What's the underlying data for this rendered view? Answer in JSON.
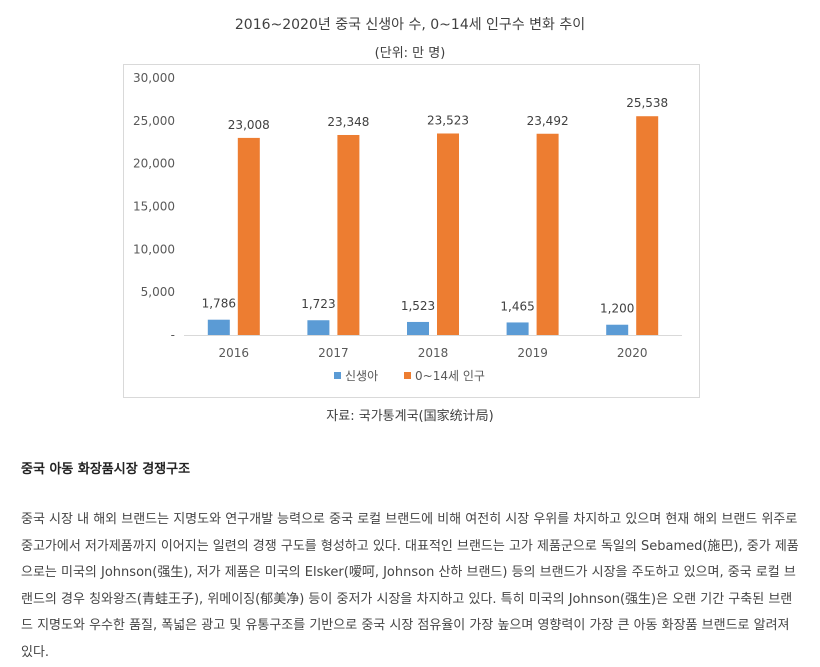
{
  "chart_data": {
    "type": "bar",
    "title": "2016~2020년 중국 신생아 수, 0~14세 인구수 변화 추이",
    "subtitle": "(단위: 만 명)",
    "categories": [
      "2016",
      "2017",
      "2018",
      "2019",
      "2020"
    ],
    "series": [
      {
        "name": "신생아",
        "values": [
          1786,
          1723,
          1523,
          1465,
          1200
        ],
        "labels": [
          "1,786",
          "1,723",
          "1,523",
          "1,465",
          "1,200"
        ],
        "color": "#5b9bd5"
      },
      {
        "name": "0~14세 인구",
        "values": [
          23008,
          23348,
          23523,
          23492,
          25538
        ],
        "labels": [
          "23,008",
          "23,348",
          "23,523",
          "23,492",
          "25,538"
        ],
        "color": "#ed7d31"
      }
    ],
    "ylim": [
      0,
      30000
    ],
    "yticks": [
      0,
      5000,
      10000,
      15000,
      20000,
      25000,
      30000
    ],
    "ytick_labels": [
      "-",
      "5,000",
      "10,000",
      "15,000",
      "20,000",
      "25,000",
      "30,000"
    ],
    "grid": false,
    "legend_position": "bottom"
  },
  "source": "자료: 국가통계국(国家统计局)",
  "article": {
    "heading": "중국 아동 화장품시장 경쟁구조",
    "body": "중국 시장 내 해외 브랜드는 지명도와 연구개발 능력으로 중국 로컬 브랜드에 비해 여전히 시장 우위를 차지하고 있으며 현재 해외 브랜드 위주로 중고가에서 저가제품까지 이어지는 일련의 경쟁 구도를 형성하고 있다. 대표적인 브랜드는 고가 제품군으로 독일의 Sebamed(施巴), 중가 제품으로는 미국의 Johnson(强生), 저가 제품은 미국의 Elsker(嗳呵, Johnson 산하 브랜드) 등의 브랜드가 시장을 주도하고 있으며, 중국 로컬 브랜드의 경우 칭와왕즈(青蛙王子), 위메이징(郁美净) 등이 중저가 시장을 차지하고 있다. 특히 미국의 Johnson(强生)은 오랜 기간 구축된 브랜드 지명도와 우수한 품질, 폭넓은 광고 및 유통구조를 기반으로 중국 시장 점유율이 가장 높으며 영향력이 가장 큰 아동 화장품 브랜드로 알려져 있다."
  }
}
